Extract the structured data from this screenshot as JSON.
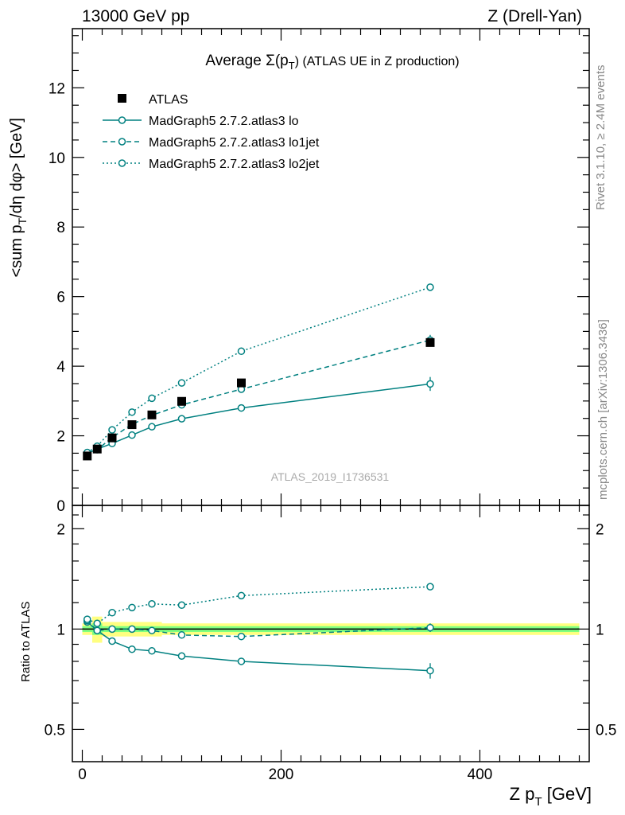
{
  "header": {
    "left": "13000 GeV pp",
    "right": "Z (Drell-Yan)"
  },
  "side_text": {
    "rivet": "Rivet 3.1.10, ≥ 2.4M events",
    "mcplots": "mcplots.cern.ch [arXiv:1306.3436]"
  },
  "colors": {
    "data": "#000000",
    "mc": "#008080",
    "band_outer": "#ffff80",
    "band_inner": "#80ff80"
  },
  "chart_data": [
    {
      "type": "scatter",
      "panel": "main",
      "title_prefix": "Average",
      "title_sigma": "Σ(p",
      "title_sub": "T",
      "title_suffix": ") (ATLAS UE in Z production)",
      "ylabel": "<sum p_T/dη dφ> [GeV]",
      "ylim": [
        0,
        13.7
      ],
      "yticks": [
        0,
        2,
        4,
        6,
        8,
        10,
        12
      ],
      "watermark": "ATLAS_2019_I1736531",
      "legend_position": "top-left",
      "series": [
        {
          "name": "ATLAS",
          "style": "square-marker",
          "x": [
            5,
            15,
            30,
            50,
            70,
            100,
            160,
            350
          ],
          "y": [
            1.42,
            1.62,
            1.94,
            2.32,
            2.6,
            2.99,
            3.52,
            4.68
          ]
        },
        {
          "name": "MadGraph5 2.7.2.atlas3 lo",
          "style": "solid",
          "x": [
            5,
            15,
            30,
            50,
            70,
            100,
            160,
            350
          ],
          "y": [
            1.49,
            1.62,
            1.78,
            2.02,
            2.26,
            2.49,
            2.8,
            3.49
          ],
          "yerr": [
            0.02,
            0.02,
            0.02,
            0.03,
            0.03,
            0.04,
            0.05,
            0.2
          ]
        },
        {
          "name": "MadGraph5 2.7.2.atlas3 lo1jet",
          "style": "dashed",
          "x": [
            5,
            15,
            30,
            50,
            70,
            100,
            160,
            350
          ],
          "y": [
            1.51,
            1.6,
            1.95,
            2.33,
            2.59,
            2.89,
            3.34,
            4.75
          ],
          "yerr": [
            0.02,
            0.02,
            0.02,
            0.03,
            0.03,
            0.04,
            0.05,
            0.15
          ]
        },
        {
          "name": "MadGraph5 2.7.2.atlas3 lo2jet",
          "style": "dotted",
          "x": [
            5,
            15,
            30,
            50,
            70,
            100,
            160,
            350
          ],
          "y": [
            1.52,
            1.7,
            2.17,
            2.68,
            3.08,
            3.52,
            4.43,
            6.27
          ],
          "yerr": [
            0.02,
            0.02,
            0.02,
            0.03,
            0.03,
            0.04,
            0.05,
            0.1
          ]
        }
      ]
    },
    {
      "type": "scatter",
      "panel": "ratio",
      "ylabel": "Ratio to ATLAS",
      "xlabel": "Z p_T [GeV]",
      "xlim": [
        -10,
        510
      ],
      "xticks": [
        0,
        200,
        400
      ],
      "ylim_log": [
        0.4,
        2.35
      ],
      "yticks": [
        0.5,
        1,
        2
      ],
      "bands": {
        "bins": [
          [
            0,
            10
          ],
          [
            10,
            20
          ],
          [
            20,
            40
          ],
          [
            40,
            60
          ],
          [
            60,
            80
          ],
          [
            80,
            120
          ],
          [
            120,
            200
          ],
          [
            200,
            500
          ]
        ],
        "outer": [
          0.04,
          0.09,
          0.05,
          0.05,
          0.05,
          0.04,
          0.04,
          0.04
        ],
        "inner": [
          0.02,
          0.04,
          0.02,
          0.02,
          0.02,
          0.02,
          0.02,
          0.02
        ]
      },
      "series": [
        {
          "name": "MadGraph5 2.7.2.atlas3 lo",
          "style": "solid",
          "x": [
            5,
            15,
            30,
            50,
            70,
            100,
            160,
            350
          ],
          "y": [
            1.05,
            0.99,
            0.92,
            0.87,
            0.86,
            0.83,
            0.8,
            0.75
          ],
          "yerr": [
            0.01,
            0.01,
            0.01,
            0.01,
            0.01,
            0.01,
            0.01,
            0.04
          ]
        },
        {
          "name": "MadGraph5 2.7.2.atlas3 lo1jet",
          "style": "dashed",
          "x": [
            5,
            15,
            30,
            50,
            70,
            100,
            160,
            350
          ],
          "y": [
            1.06,
            0.99,
            1.0,
            1.0,
            0.99,
            0.96,
            0.95,
            1.01
          ],
          "yerr": [
            0.01,
            0.01,
            0.01,
            0.01,
            0.01,
            0.01,
            0.01,
            0.03
          ]
        },
        {
          "name": "MadGraph5 2.7.2.atlas3 lo2jet",
          "style": "dotted",
          "x": [
            5,
            15,
            30,
            50,
            70,
            100,
            160,
            350
          ],
          "y": [
            1.07,
            1.04,
            1.12,
            1.16,
            1.19,
            1.18,
            1.26,
            1.34
          ],
          "yerr": [
            0.01,
            0.01,
            0.01,
            0.01,
            0.01,
            0.01,
            0.01,
            0.02
          ]
        }
      ]
    }
  ]
}
